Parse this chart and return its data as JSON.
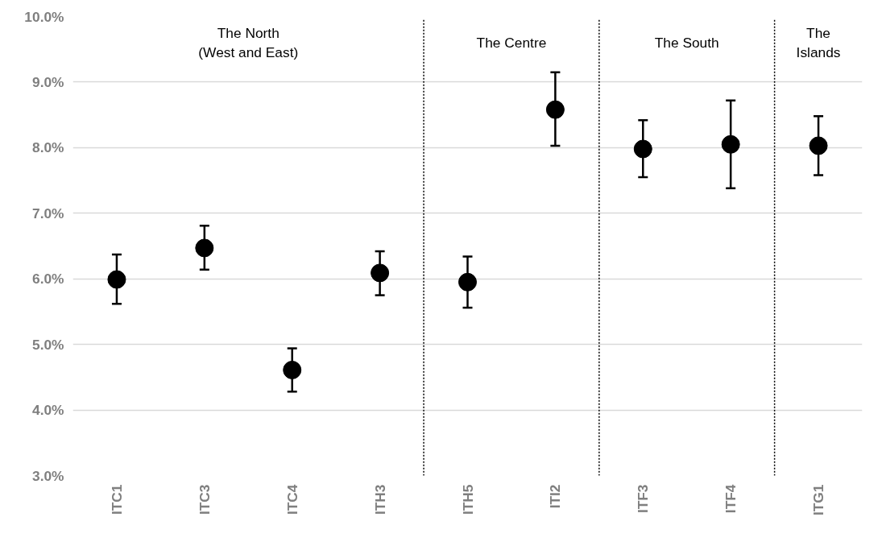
{
  "chart_data": {
    "type": "scatter",
    "categories": [
      "ITC1",
      "ITC3",
      "ITC4",
      "ITH3",
      "ITH5",
      "ITI2",
      "ITF3",
      "ITF4",
      "ITG1"
    ],
    "series": [
      {
        "color": "#000000",
        "values": [
          5.99,
          6.47,
          4.61,
          6.09,
          5.95,
          8.58,
          7.98,
          8.05,
          8.03
        ],
        "errors": [
          [
            5.62,
            6.37
          ],
          [
            6.14,
            6.81
          ],
          [
            4.28,
            4.94
          ],
          [
            5.75,
            6.42
          ],
          [
            5.56,
            6.34
          ],
          [
            8.03,
            9.15
          ],
          [
            7.55,
            8.42
          ],
          [
            7.38,
            8.72
          ],
          [
            7.58,
            8.48
          ]
        ]
      }
    ],
    "ylim": [
      3,
      10
    ],
    "yticks": [
      {
        "value": 3,
        "label": "3.0%"
      },
      {
        "value": 4,
        "label": "4.0%"
      },
      {
        "value": 5,
        "label": "5.0%"
      },
      {
        "value": 6,
        "label": "6.0%"
      },
      {
        "value": 7,
        "label": "7.0%"
      },
      {
        "value": 8,
        "label": "8.0%"
      },
      {
        "value": 9,
        "label": "9.0%"
      },
      {
        "value": 10,
        "label": "10.0%"
      }
    ],
    "annotations": [
      "The North\n(West and East)",
      "The Centre",
      "The South",
      "The\nIslands"
    ],
    "grid": "y",
    "marker": "circle"
  }
}
